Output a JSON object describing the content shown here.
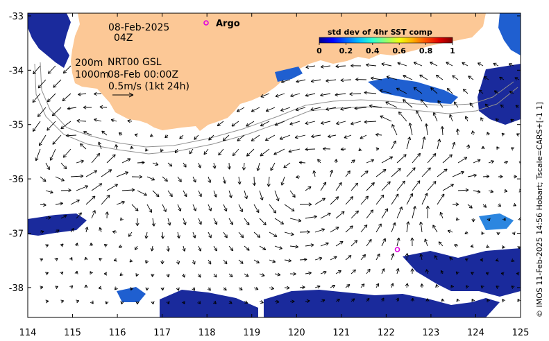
{
  "map": {
    "axes": {
      "lon_min": 114,
      "lon_max": 125,
      "lat_min": -38.55,
      "lat_max": -32.95,
      "x_ticks": [
        "114",
        "115",
        "116",
        "117",
        "118",
        "119",
        "120",
        "121",
        "122",
        "123",
        "124",
        "125"
      ],
      "y_ticks": [
        "-33",
        "-34",
        "-35",
        "-36",
        "-37",
        "-38"
      ]
    },
    "annotations": {
      "date": "08-Feb-2025",
      "hour": "04Z",
      "depth_200": "200m",
      "model": "NRT00 GSL",
      "depth_1000": "1000m",
      "model_time": "08-Feb 00:00Z",
      "scale_label": "0.5m/s (1kt 24h)"
    },
    "legend": {
      "argo_label": "Argo",
      "argo_color": "#e000e0"
    },
    "colorbar": {
      "title": "std dev of 4hr SST comp",
      "ticks": [
        "0",
        "0.2",
        "0.4",
        "0.6",
        "0.8",
        "1"
      ],
      "colors": [
        "#00008f",
        "#0000ff",
        "#0060ff",
        "#00c0ff",
        "#30ffcf",
        "#90ff70",
        "#f0ff10",
        "#ffb000",
        "#ff5000",
        "#df0000",
        "#800000"
      ]
    },
    "colors": {
      "land": "#fcc896",
      "sst_dark": "#1a2a9c",
      "sst_mid": "#1f5fd0",
      "sst_light": "#2c86e0",
      "arrow": "#000000",
      "contour": "#909090"
    },
    "argo_floats": [
      {
        "lon": 122.25,
        "lat": -37.3
      }
    ],
    "credit": "© IMOS 11-Feb-2025 14:56 Hobart; Tscale=CARS+[-1 1]"
  }
}
